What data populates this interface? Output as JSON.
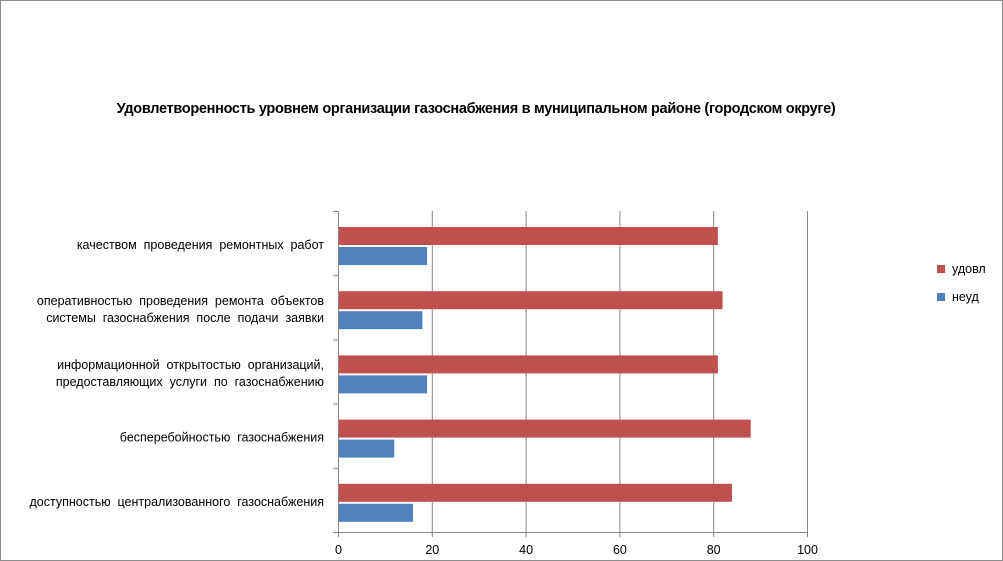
{
  "chart_data": {
    "type": "bar",
    "orientation": "horizontal",
    "title": "Удовлетворенность уровнем организации газоснабжения в муниципальном районе (городском округе)",
    "categories": [
      [
        "качеством  проведения  ремонтных  работ"
      ],
      [
        "оперативностью  проведения  ремонта  объектов",
        "системы  газоснабжения  после  подачи  заявки"
      ],
      [
        "информационной  открытостью  организаций,",
        "предоставляющих  услуги  по  газоснабжению"
      ],
      [
        "бесперебойностью  газоснабжения"
      ],
      [
        "доступностью  централизованного  газоснабжения"
      ]
    ],
    "series": [
      {
        "name": "удовл",
        "color": "#C0504D",
        "values": [
          81,
          82,
          81,
          88,
          84
        ]
      },
      {
        "name": "неуд",
        "color": "#4F81BD",
        "values": [
          19,
          18,
          19,
          12,
          16
        ]
      }
    ],
    "xlim": [
      0,
      100
    ],
    "xticks": [
      0,
      20,
      40,
      60,
      80,
      100
    ],
    "grid": true,
    "legend_position": "right"
  }
}
